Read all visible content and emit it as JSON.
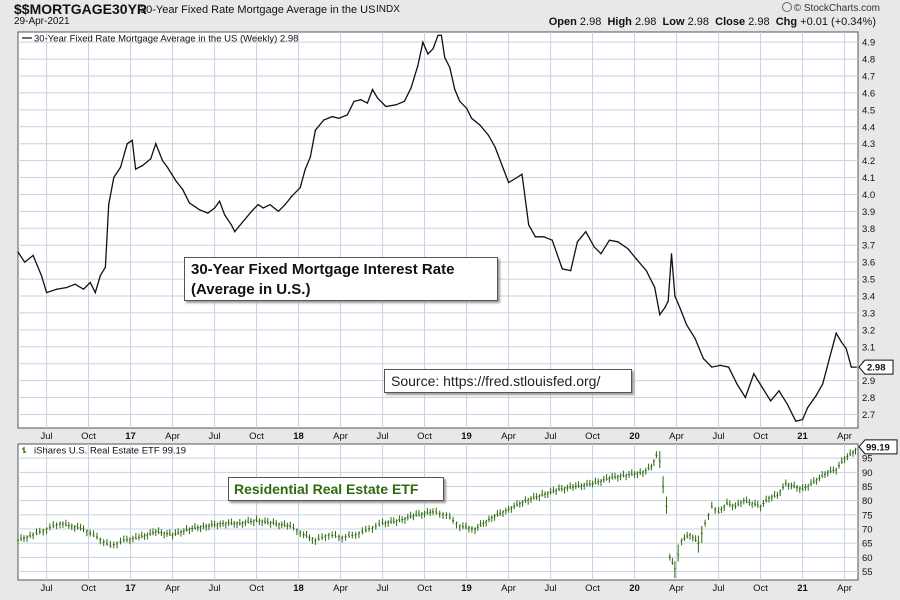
{
  "header": {
    "symbol": "$$MORTGAGE30YR",
    "description": "30-Year Fixed Rate Mortgage Average in the US",
    "exchange": "INDX",
    "date": "29-Apr-2021",
    "open_label": "Open",
    "open": "2.98",
    "high_label": "High",
    "high": "2.98",
    "low_label": "Low",
    "low": "2.98",
    "close_label": "Close",
    "close": "2.98",
    "chg_label": "Chg",
    "chg": "+0.01 (+0.34%)",
    "brand": "© StockCharts.com"
  },
  "annotations": {
    "mortgage_line1": "30-Year Fixed Mortgage Interest Rate",
    "mortgage_line2": "(Average in U.S.)",
    "source": "Source: https://fred.stlouisfed.org/",
    "etf": "Residential Real Estate ETF"
  },
  "colors": {
    "background": "#e8e8e8",
    "plot_bg": "#ffffff",
    "grid": "#c6d2e0",
    "mortgage_line": "#111111",
    "etf_bars": "#2d6b10",
    "etf_label": "#2d6b10"
  },
  "chart_data": [
    {
      "type": "line",
      "legend": "30-Year Fixed Rate Mortgage Average in the US (Weekly) 2.98",
      "last_value_label": "2.98",
      "ylim": [
        2.62,
        4.96
      ],
      "yticks": [
        "2.7",
        "2.8",
        "2.9",
        "3.0",
        "3.1",
        "3.2",
        "3.3",
        "3.4",
        "3.5",
        "3.6",
        "3.7",
        "3.8",
        "3.9",
        "4.0",
        "4.1",
        "4.2",
        "4.3",
        "4.4",
        "4.5",
        "4.6",
        "4.7",
        "4.8",
        "4.9"
      ],
      "x_labels": [
        "Jul",
        "Oct",
        "17",
        "Apr",
        "Jul",
        "Oct",
        "18",
        "Apr",
        "Jul",
        "Oct",
        "19",
        "Apr",
        "Jul",
        "Oct",
        "20",
        "Apr",
        "Jul",
        "Oct",
        "21",
        "Apr"
      ],
      "x": [
        2016.33,
        2016.37,
        2016.42,
        2016.47,
        2016.5,
        2016.56,
        2016.62,
        2016.67,
        2016.72,
        2016.76,
        2016.79,
        2016.82,
        2016.85,
        2016.87,
        2016.9,
        2016.94,
        2016.98,
        2017.01,
        2017.03,
        2017.07,
        2017.12,
        2017.15,
        2017.19,
        2017.22,
        2017.27,
        2017.31,
        2017.35,
        2017.41,
        2017.46,
        2017.5,
        2017.53,
        2017.56,
        2017.6,
        2017.62,
        2017.67,
        2017.72,
        2017.76,
        2017.79,
        2017.83,
        2017.88,
        2017.92,
        2017.96,
        2018.01,
        2018.04,
        2018.07,
        2018.1,
        2018.15,
        2018.2,
        2018.24,
        2018.29,
        2018.33,
        2018.37,
        2018.41,
        2018.44,
        2018.47,
        2018.52,
        2018.58,
        2018.63,
        2018.67,
        2018.71,
        2018.74,
        2018.77,
        2018.8,
        2018.83,
        2018.85,
        2018.87,
        2018.9,
        2018.93,
        2018.96,
        2019.0,
        2019.03,
        2019.08,
        2019.13,
        2019.17,
        2019.22,
        2019.25,
        2019.3,
        2019.33,
        2019.37,
        2019.41,
        2019.46,
        2019.51,
        2019.57,
        2019.62,
        2019.66,
        2019.71,
        2019.76,
        2019.8,
        2019.85,
        2019.9,
        2019.96,
        2020.01,
        2020.07,
        2020.12,
        2020.15,
        2020.18,
        2020.2,
        2020.22,
        2020.24,
        2020.27,
        2020.31,
        2020.36,
        2020.41,
        2020.46,
        2020.51,
        2020.56,
        2020.61,
        2020.66,
        2020.71,
        2020.76,
        2020.81,
        2020.86,
        2020.91,
        2020.96,
        2021.0,
        2021.03,
        2021.08,
        2021.12,
        2021.16,
        2021.2,
        2021.23,
        2021.26,
        2021.29,
        2021.32
      ],
      "values": [
        3.66,
        3.6,
        3.64,
        3.52,
        3.42,
        3.44,
        3.45,
        3.47,
        3.44,
        3.48,
        3.42,
        3.52,
        3.57,
        3.94,
        4.1,
        4.16,
        4.3,
        4.32,
        4.15,
        4.17,
        4.21,
        4.3,
        4.2,
        4.16,
        4.08,
        4.03,
        3.95,
        3.91,
        3.89,
        3.92,
        3.96,
        3.88,
        3.82,
        3.78,
        3.84,
        3.9,
        3.94,
        3.92,
        3.94,
        3.9,
        3.94,
        3.99,
        4.04,
        4.15,
        4.22,
        4.38,
        4.44,
        4.46,
        4.45,
        4.47,
        4.55,
        4.56,
        4.54,
        4.62,
        4.57,
        4.52,
        4.53,
        4.55,
        4.63,
        4.76,
        4.9,
        4.83,
        4.86,
        4.94,
        4.94,
        4.81,
        4.75,
        4.62,
        4.55,
        4.51,
        4.45,
        4.41,
        4.35,
        4.28,
        4.15,
        4.07,
        4.1,
        4.12,
        3.82,
        3.75,
        3.75,
        3.73,
        3.56,
        3.55,
        3.72,
        3.78,
        3.69,
        3.65,
        3.73,
        3.72,
        3.68,
        3.62,
        3.55,
        3.45,
        3.29,
        3.33,
        3.37,
        3.65,
        3.4,
        3.33,
        3.23,
        3.15,
        3.03,
        2.98,
        2.99,
        2.98,
        2.88,
        2.8,
        2.94,
        2.86,
        2.78,
        2.84,
        2.76,
        2.66,
        2.67,
        2.74,
        2.81,
        2.88,
        3.03,
        3.18,
        3.13,
        3.09,
        2.98,
        2.98
      ]
    },
    {
      "type": "bar",
      "legend": "iShares U.S. Real Estate ETF 99.19",
      "last_value_label": "99.19",
      "ylim": [
        52,
        100
      ],
      "yticks": [
        "55",
        "60",
        "65",
        "70",
        "75",
        "80",
        "85",
        "90",
        "95"
      ],
      "x_labels": [
        "Jul",
        "Oct",
        "17",
        "Apr",
        "Jul",
        "Oct",
        "18",
        "Apr",
        "Jul",
        "Oct",
        "19",
        "Apr",
        "Jul",
        "Oct",
        "20",
        "Apr",
        "Jul",
        "Oct",
        "21",
        "Apr"
      ],
      "x": [
        2016.33,
        2016.42,
        2016.5,
        2016.58,
        2016.65,
        2016.72,
        2016.8,
        2016.88,
        2016.96,
        2017.05,
        2017.15,
        2017.25,
        2017.35,
        2017.45,
        2017.55,
        2017.65,
        2017.75,
        2017.85,
        2017.95,
        2018.03,
        2018.1,
        2018.18,
        2018.26,
        2018.34,
        2018.42,
        2018.5,
        2018.6,
        2018.7,
        2018.8,
        2018.88,
        2018.96,
        2019.05,
        2019.15,
        2019.25,
        2019.35,
        2019.45,
        2019.55,
        2019.65,
        2019.75,
        2019.85,
        2019.95,
        2020.05,
        2020.1,
        2020.13,
        2020.15,
        2020.17,
        2020.19,
        2020.21,
        2020.24,
        2020.28,
        2020.33,
        2020.38,
        2020.42,
        2020.46,
        2020.5,
        2020.55,
        2020.6,
        2020.65,
        2020.7,
        2020.75,
        2020.8,
        2020.85,
        2020.9,
        2020.95,
        2021.0,
        2021.05,
        2021.1,
        2021.15,
        2021.2,
        2021.25,
        2021.3,
        2021.33
      ],
      "values": [
        66,
        68,
        70,
        72,
        71,
        70,
        67,
        64,
        66,
        67,
        69,
        68,
        70,
        71,
        72,
        72,
        73,
        72,
        71,
        68,
        66,
        68,
        67,
        68,
        70,
        72,
        73,
        75,
        76,
        75,
        71,
        70,
        74,
        77,
        80,
        82,
        84,
        85,
        86,
        88,
        89,
        90,
        92,
        96,
        94,
        85,
        78,
        60,
        56,
        66,
        68,
        65,
        72,
        78,
        76,
        79,
        78,
        80,
        79,
        78,
        81,
        82,
        86,
        85,
        84,
        86,
        88,
        90,
        91,
        95,
        97,
        99
      ]
    }
  ]
}
